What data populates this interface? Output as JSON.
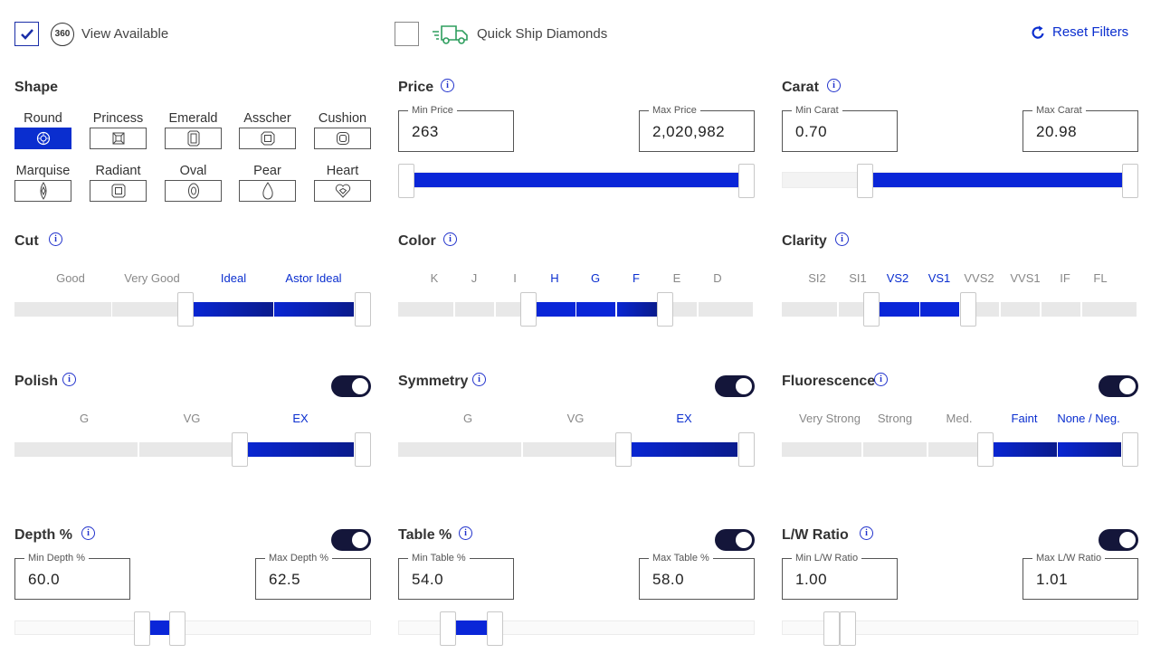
{
  "top": {
    "view_available": {
      "checked": true,
      "badge": "360",
      "label": "View Available"
    },
    "quick_ship": {
      "checked": false,
      "label": "Quick Ship Diamonds"
    },
    "reset": "Reset Filters"
  },
  "shape": {
    "title": "Shape",
    "items": [
      {
        "label": "Round",
        "selected": true
      },
      {
        "label": "Princess",
        "selected": false
      },
      {
        "label": "Emerald",
        "selected": false
      },
      {
        "label": "Asscher",
        "selected": false
      },
      {
        "label": "Cushion",
        "selected": false
      },
      {
        "label": "Marquise",
        "selected": false
      },
      {
        "label": "Radiant",
        "selected": false
      },
      {
        "label": "Oval",
        "selected": false
      },
      {
        "label": "Pear",
        "selected": false
      },
      {
        "label": "Heart",
        "selected": false
      }
    ]
  },
  "price": {
    "title": "Price",
    "min_label": "Min Price",
    "min": "263",
    "max_label": "Max Price",
    "max": "2,020,982"
  },
  "carat": {
    "title": "Carat",
    "min_label": "Min Carat",
    "min": "0.70",
    "max_label": "Max Carat",
    "max": "20.98"
  },
  "cut": {
    "title": "Cut",
    "grades": [
      "Good",
      "Very Good",
      "Ideal",
      "Astor Ideal"
    ],
    "selected": [
      2,
      3
    ]
  },
  "color": {
    "title": "Color",
    "grades": [
      "K",
      "J",
      "I",
      "H",
      "G",
      "F",
      "E",
      "D"
    ],
    "selected": [
      3,
      5
    ]
  },
  "clarity": {
    "title": "Clarity",
    "grades": [
      "SI2",
      "SI1",
      "VS2",
      "VS1",
      "VVS2",
      "VVS1",
      "IF",
      "FL"
    ],
    "selected": [
      2,
      3
    ]
  },
  "polish": {
    "title": "Polish",
    "toggle_on": true,
    "grades": [
      "G",
      "VG",
      "EX"
    ],
    "selected": [
      2,
      2
    ]
  },
  "symmetry": {
    "title": "Symmetry",
    "toggle_on": true,
    "grades": [
      "G",
      "VG",
      "EX"
    ],
    "selected": [
      2,
      2
    ]
  },
  "fluorescence": {
    "title": "Fluorescence",
    "toggle_on": true,
    "grades": [
      "Very Strong",
      "Strong",
      "Med.",
      "Faint",
      "None / Neg."
    ],
    "selected": [
      3,
      4
    ]
  },
  "depth": {
    "title": "Depth %",
    "toggle_on": true,
    "min_label": "Min Depth %",
    "min": "60.0",
    "max_label": "Max Depth %",
    "max": "62.5"
  },
  "table": {
    "title": "Table %",
    "toggle_on": true,
    "min_label": "Min Table %",
    "min": "54.0",
    "max_label": "Max Table %",
    "max": "58.0"
  },
  "lw_ratio": {
    "title": "L/W Ratio",
    "toggle_on": true,
    "min_label": "Min L/W Ratio",
    "min": "1.00",
    "max_label": "Max L/W Ratio",
    "max": "1.01"
  },
  "info_glyph": "i",
  "colors": {
    "accent": "#0a2ecf",
    "toggle": "#14163a",
    "track": "#e8e8e8"
  }
}
